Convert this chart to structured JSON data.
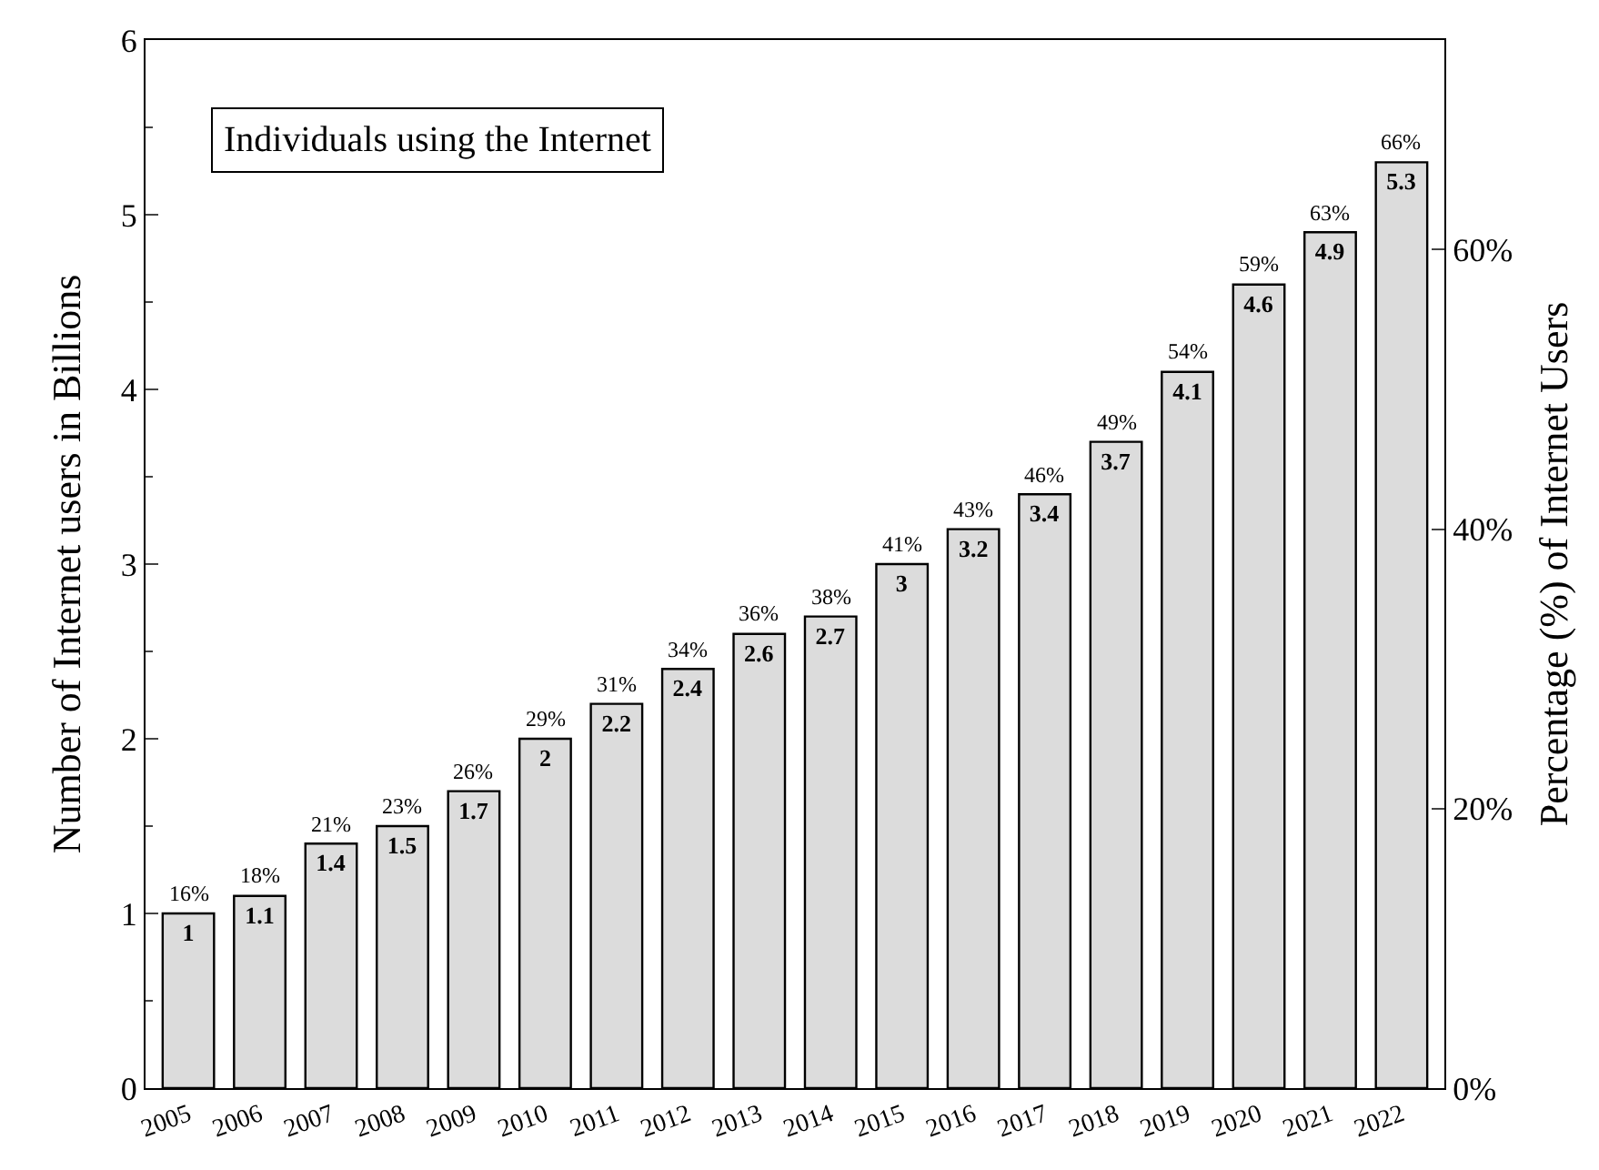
{
  "chart_data": {
    "type": "bar",
    "title": "Individuals using the Internet",
    "categories": [
      "2005",
      "2006",
      "2007",
      "2008",
      "2009",
      "2010",
      "2011",
      "2012",
      "2013",
      "2014",
      "2015",
      "2016",
      "2017",
      "2018",
      "2019",
      "2020",
      "2021",
      "2022"
    ],
    "values": [
      1,
      1.1,
      1.4,
      1.5,
      1.7,
      2,
      2.2,
      2.4,
      2.6,
      2.7,
      3,
      3.2,
      3.4,
      3.7,
      4.1,
      4.6,
      4.9,
      5.3
    ],
    "color": "#dcdcdc",
    "data_labels": true,
    "ylabel": "Number of Internet users in Billions",
    "y2label": "Percentage (%) of Internet Users",
    "ylim": [
      0,
      6
    ],
    "yticks": [
      0,
      1,
      2,
      3,
      4,
      5,
      6
    ],
    "y2lim": [
      0,
      75
    ],
    "y2ticks": [
      {
        "value": 0,
        "label": "0%"
      },
      {
        "value": 20,
        "label": "20%"
      },
      {
        "value": 40,
        "label": "40%"
      },
      {
        "value": 60,
        "label": "60%"
      }
    ],
    "annotations": [
      {
        "text": "16%",
        "x": "2005",
        "y": 1
      },
      {
        "text": "18%",
        "x": "2006",
        "y": 1.1
      },
      {
        "text": "21%",
        "x": "2007",
        "y": 1.4
      },
      {
        "text": "23%",
        "x": "2008",
        "y": 1.5
      },
      {
        "text": "26%",
        "x": "2009",
        "y": 1.7
      },
      {
        "text": "29%",
        "x": "2010",
        "y": 2
      },
      {
        "text": "31%",
        "x": "2011",
        "y": 2.2
      },
      {
        "text": "34%",
        "x": "2012",
        "y": 2.4
      },
      {
        "text": "36%",
        "x": "2013",
        "y": 2.6
      },
      {
        "text": "38%",
        "x": "2014",
        "y": 2.7
      },
      {
        "text": "41%",
        "x": "2015",
        "y": 3
      },
      {
        "text": "43%",
        "x": "2016",
        "y": 3.2
      },
      {
        "text": "46%",
        "x": "2017",
        "y": 3.4
      },
      {
        "text": "49%",
        "x": "2018",
        "y": 3.7
      },
      {
        "text": "54%",
        "x": "2019",
        "y": 4.1
      },
      {
        "text": "59%",
        "x": "2020",
        "y": 4.6
      },
      {
        "text": "63%",
        "x": "2021",
        "y": 4.9
      },
      {
        "text": "66%",
        "x": "2022",
        "y": 5.3
      }
    ],
    "orientation": "vertical"
  }
}
